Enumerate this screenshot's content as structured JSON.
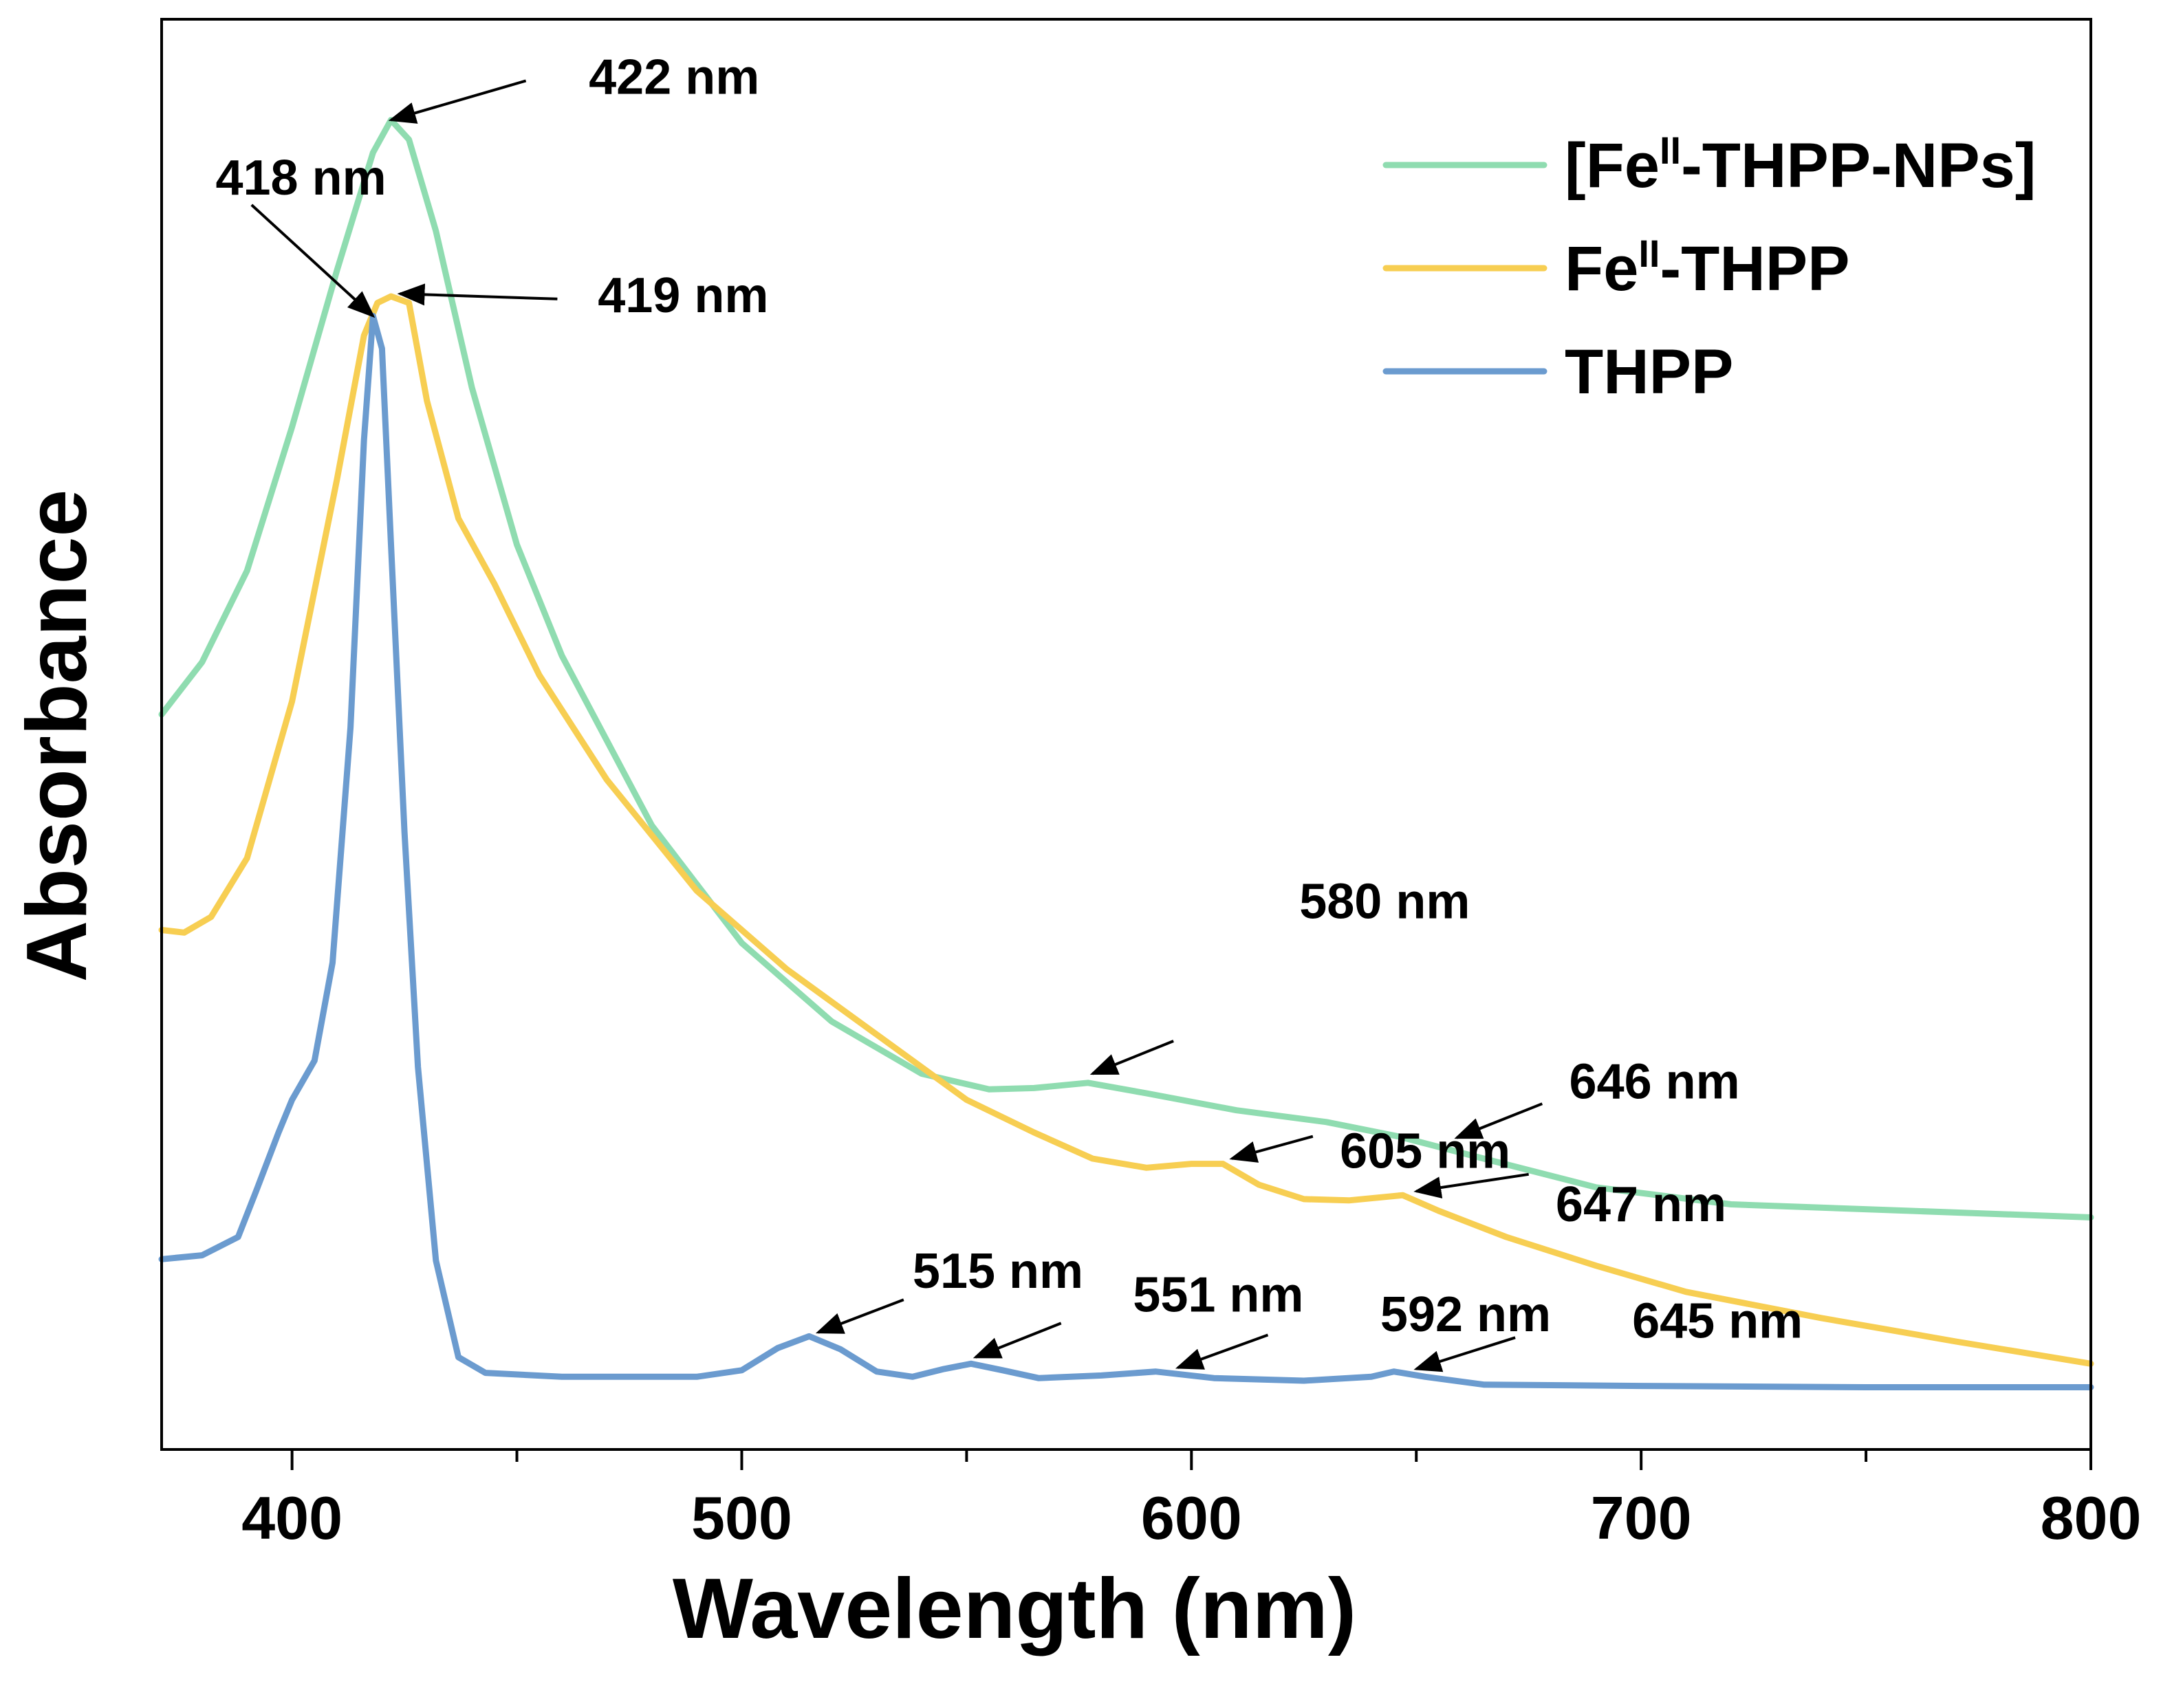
{
  "chart_data": {
    "type": "line",
    "title": "",
    "xlabel": "Wavelength (nm)",
    "ylabel": "Absorbance",
    "xlim": [
      371,
      800
    ],
    "ylim": [
      0,
      100
    ],
    "x_ticks": [
      400,
      500,
      600,
      700,
      800
    ],
    "y_ticks_shown": false,
    "grid": false,
    "legend_position": "top-right",
    "series": [
      {
        "name": "[Fe",
        "name_sup": "II",
        "name_rest": "-THPP-NPs]",
        "color": "#8fdcb0",
        "points": [
          [
            371,
            51
          ],
          [
            380,
            55
          ],
          [
            390,
            62
          ],
          [
            400,
            73
          ],
          [
            410,
            85
          ],
          [
            418,
            94
          ],
          [
            422,
            96.5
          ],
          [
            426,
            95
          ],
          [
            432,
            88
          ],
          [
            440,
            76
          ],
          [
            450,
            64
          ],
          [
            460,
            55.5
          ],
          [
            480,
            42.5
          ],
          [
            500,
            33.5
          ],
          [
            520,
            27.5
          ],
          [
            540,
            23.5
          ],
          [
            555,
            22.3
          ],
          [
            565,
            22.4
          ],
          [
            577,
            22.8
          ],
          [
            590,
            22
          ],
          [
            610,
            20.7
          ],
          [
            630,
            19.8
          ],
          [
            646,
            18.7
          ],
          [
            665,
            17
          ],
          [
            690,
            14.8
          ],
          [
            720,
            13.5
          ],
          [
            760,
            13
          ],
          [
            800,
            12.5
          ]
        ]
      },
      {
        "name": "Fe",
        "name_sup": "II",
        "name_rest": "-THPP",
        "color": "#f7ce52",
        "points": [
          [
            371,
            34.5
          ],
          [
            376,
            34.3
          ],
          [
            382,
            35.5
          ],
          [
            390,
            40
          ],
          [
            400,
            52
          ],
          [
            410,
            69
          ],
          [
            416,
            80
          ],
          [
            419,
            82.5
          ],
          [
            422,
            83
          ],
          [
            426,
            82.5
          ],
          [
            430,
            75
          ],
          [
            437,
            66
          ],
          [
            445,
            61
          ],
          [
            455,
            54
          ],
          [
            470,
            46
          ],
          [
            490,
            37.5
          ],
          [
            510,
            31.5
          ],
          [
            530,
            26.5
          ],
          [
            550,
            21.5
          ],
          [
            565,
            19
          ],
          [
            578,
            17
          ],
          [
            590,
            16.3
          ],
          [
            600,
            16.6
          ],
          [
            607,
            16.6
          ],
          [
            615,
            15
          ],
          [
            625,
            13.9
          ],
          [
            635,
            13.8
          ],
          [
            647,
            14.2
          ],
          [
            655,
            13
          ],
          [
            670,
            11
          ],
          [
            690,
            8.8
          ],
          [
            710,
            6.8
          ],
          [
            740,
            4.8
          ],
          [
            770,
            3
          ],
          [
            800,
            1.3
          ]
        ]
      },
      {
        "name": "THPP",
        "name_sup": "",
        "name_rest": "",
        "color": "#6b9bcf",
        "points": [
          [
            371,
            9.3
          ],
          [
            380,
            9.6
          ],
          [
            388,
            11
          ],
          [
            392,
            14.5
          ],
          [
            397,
            19
          ],
          [
            400,
            21.5
          ],
          [
            405,
            24.5
          ],
          [
            409,
            32
          ],
          [
            413,
            50
          ],
          [
            416,
            72
          ],
          [
            418,
            81.5
          ],
          [
            420,
            79
          ],
          [
            422,
            64
          ],
          [
            425,
            42
          ],
          [
            428,
            24
          ],
          [
            432,
            9.2
          ],
          [
            437,
            1.8
          ],
          [
            443,
            0.6
          ],
          [
            460,
            0.3
          ],
          [
            490,
            0.3
          ],
          [
            500,
            0.8
          ],
          [
            508,
            2.5
          ],
          [
            515,
            3.4
          ],
          [
            522,
            2.4
          ],
          [
            530,
            0.7
          ],
          [
            538,
            0.3
          ],
          [
            545,
            0.9
          ],
          [
            551,
            1.3
          ],
          [
            558,
            0.8
          ],
          [
            566,
            0.2
          ],
          [
            580,
            0.4
          ],
          [
            592,
            0.7
          ],
          [
            605,
            0.2
          ],
          [
            625,
            0
          ],
          [
            640,
            0.3
          ],
          [
            645,
            0.7
          ],
          [
            652,
            0.3
          ],
          [
            665,
            -0.3
          ],
          [
            700,
            -0.4
          ],
          [
            750,
            -0.5
          ],
          [
            800,
            -0.5
          ]
        ]
      }
    ],
    "annotations": [
      {
        "label": "422 nm",
        "target": [
          422,
          96.5
        ],
        "text_at": [
          466,
          99.5
        ],
        "arrow_from": [
          452,
          99.5
        ]
      },
      {
        "label": "418 nm",
        "target": [
          418,
          81.5
        ],
        "text_at": [
          383,
          91.8
        ],
        "arrow_from": [
          391,
          90
        ]
      },
      {
        "label": "419 nm",
        "target": [
          424,
          83.2
        ],
        "text_at": [
          468,
          82.8
        ],
        "arrow_from": [
          459,
          82.8
        ]
      },
      {
        "label": "580 nm",
        "target": [
          578,
          23.5
        ],
        "text_at": [
          624,
          36.4
        ],
        "arrow_from": [
          596,
          26
        ]
      },
      {
        "label": "646 nm",
        "target": [
          659,
          18.6
        ],
        "text_at": [
          684,
          22.6
        ],
        "arrow_from": [
          678,
          21.2
        ]
      },
      {
        "label": "605 nm",
        "target": [
          609,
          17
        ],
        "text_at": [
          633,
          17.3
        ],
        "arrow_from": [
          627,
          18.7
        ]
      },
      {
        "label": "647 nm",
        "target": [
          650,
          14.5
        ],
        "text_at": [
          681,
          13.2
        ],
        "arrow_from": [
          675,
          15.8
        ]
      },
      {
        "label": "515 nm",
        "target": [
          517,
          3.7
        ],
        "text_at": [
          538,
          8.1
        ],
        "arrow_from": [
          536,
          6.2
        ]
      },
      {
        "label": "551 nm",
        "target": [
          552,
          1.8
        ],
        "text_at": [
          587,
          6.3
        ],
        "arrow_from": [
          571,
          4.4
        ]
      },
      {
        "label": "592 nm",
        "target": [
          597,
          1
        ],
        "text_at": [
          642,
          4.8
        ],
        "arrow_from": [
          617,
          3.5
        ]
      },
      {
        "label": "645 nm",
        "target": [
          650,
          0.9
        ],
        "text_at": [
          698,
          4.3
        ],
        "arrow_from": [
          672,
          3.3
        ]
      }
    ]
  }
}
